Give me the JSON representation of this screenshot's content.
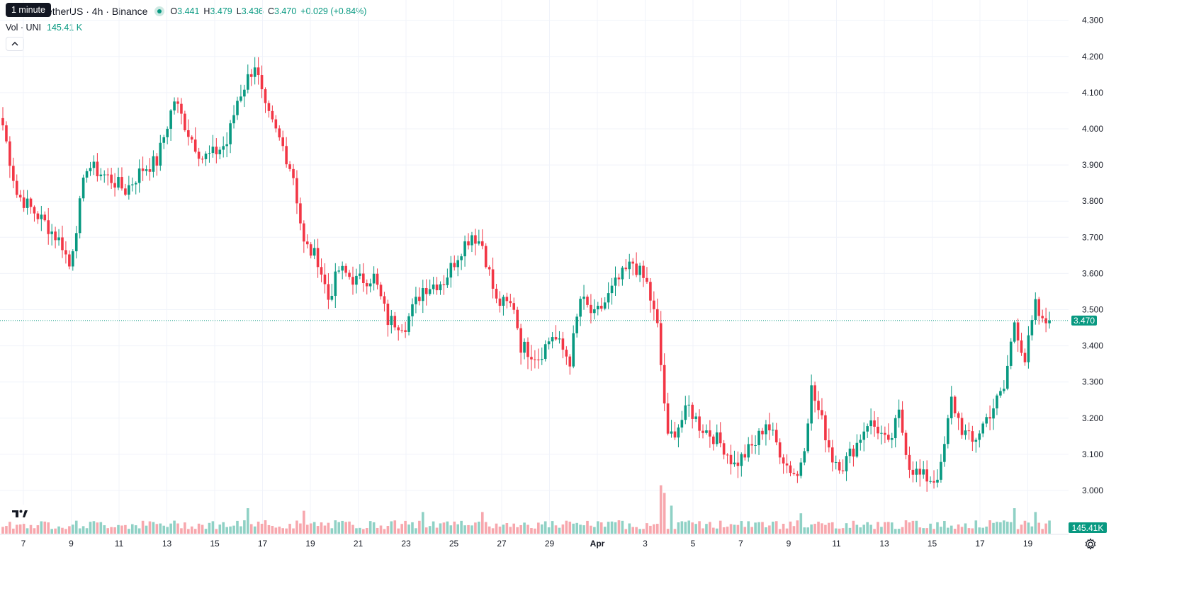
{
  "header": {
    "tooltip": "1 minute",
    "symbol": "etherUS · 4h · Binance",
    "open_label": "O",
    "open": "3.441",
    "high_label": "H",
    "high": "3.479",
    "low_label": "L",
    "low": "3.436",
    "close_label": "C",
    "close": "3.470",
    "change": "+0.029 (+0.84%)",
    "volume_label": "Vol · UNI",
    "volume_value": "145.41 K"
  },
  "colors": {
    "up": "#089981",
    "down": "#f23645",
    "up_vol": "#8fd1c5",
    "down_vol": "#f7a7ad",
    "grid": "#f0f3fa",
    "text": "#131722"
  },
  "icons": {
    "collapse": "chevron-up-icon",
    "logo": "tradingview-logo-icon",
    "settings": "gear-icon"
  },
  "chart_data": {
    "type": "candlestick",
    "interval": "4h",
    "y_ticks": [
      "3.000",
      "3.100",
      "3.200",
      "3.300",
      "3.400",
      "3.500",
      "3.600",
      "3.700",
      "3.800",
      "3.900",
      "4.000",
      "4.100",
      "4.200",
      "4.300"
    ],
    "ylim": [
      2.94,
      4.32
    ],
    "x_ticks": [
      "7",
      "9",
      "11",
      "13",
      "15",
      "17",
      "19",
      "21",
      "23",
      "25",
      "27",
      "29",
      "Apr",
      "3",
      "5",
      "7",
      "9",
      "11",
      "13",
      "15",
      "17",
      "19"
    ],
    "last_price": "3.470",
    "last_volume": "145.41K",
    "grid": true,
    "anchors": [
      {
        "i": 0,
        "p": 4.01
      },
      {
        "i": 4,
        "p": 3.82
      },
      {
        "i": 12,
        "p": 3.74
      },
      {
        "i": 17,
        "p": 3.68
      },
      {
        "i": 19,
        "p": 3.62
      },
      {
        "i": 24,
        "p": 3.9
      },
      {
        "i": 31,
        "p": 3.86
      },
      {
        "i": 35,
        "p": 3.83
      },
      {
        "i": 40,
        "p": 3.89
      },
      {
        "i": 44,
        "p": 3.91
      },
      {
        "i": 49,
        "p": 4.08
      },
      {
        "i": 53,
        "p": 3.99
      },
      {
        "i": 57,
        "p": 3.92
      },
      {
        "i": 60,
        "p": 3.93
      },
      {
        "i": 64,
        "p": 3.96
      },
      {
        "i": 67,
        "p": 4.08
      },
      {
        "i": 70,
        "p": 4.14
      },
      {
        "i": 72,
        "p": 4.18
      },
      {
        "i": 75,
        "p": 4.05
      },
      {
        "i": 80,
        "p": 3.95
      },
      {
        "i": 83,
        "p": 3.87
      },
      {
        "i": 86,
        "p": 3.68
      },
      {
        "i": 90,
        "p": 3.64
      },
      {
        "i": 93,
        "p": 3.53
      },
      {
        "i": 96,
        "p": 3.61
      },
      {
        "i": 101,
        "p": 3.58
      },
      {
        "i": 106,
        "p": 3.59
      },
      {
        "i": 110,
        "p": 3.47
      },
      {
        "i": 115,
        "p": 3.46
      },
      {
        "i": 120,
        "p": 3.56
      },
      {
        "i": 126,
        "p": 3.58
      },
      {
        "i": 131,
        "p": 3.67
      },
      {
        "i": 134,
        "p": 3.71
      },
      {
        "i": 137,
        "p": 3.68
      },
      {
        "i": 141,
        "p": 3.52
      },
      {
        "i": 146,
        "p": 3.51
      },
      {
        "i": 148,
        "p": 3.4
      },
      {
        "i": 153,
        "p": 3.37
      },
      {
        "i": 157,
        "p": 3.43
      },
      {
        "i": 162,
        "p": 3.36
      },
      {
        "i": 165,
        "p": 3.53
      },
      {
        "i": 169,
        "p": 3.48
      },
      {
        "i": 172,
        "p": 3.52
      },
      {
        "i": 175,
        "p": 3.57
      },
      {
        "i": 180,
        "p": 3.63
      },
      {
        "i": 184,
        "p": 3.57
      },
      {
        "i": 187,
        "p": 3.45
      },
      {
        "i": 190,
        "p": 3.14
      },
      {
        "i": 193,
        "p": 3.18
      },
      {
        "i": 196,
        "p": 3.23
      },
      {
        "i": 199,
        "p": 3.18
      },
      {
        "i": 203,
        "p": 3.15
      },
      {
        "i": 206,
        "p": 3.12
      },
      {
        "i": 209,
        "p": 3.07
      },
      {
        "i": 212,
        "p": 3.1
      },
      {
        "i": 215,
        "p": 3.13
      },
      {
        "i": 218,
        "p": 3.19
      },
      {
        "i": 221,
        "p": 3.13
      },
      {
        "i": 224,
        "p": 3.07
      },
      {
        "i": 227,
        "p": 3.04
      },
      {
        "i": 229,
        "p": 3.13
      },
      {
        "i": 231,
        "p": 3.28
      },
      {
        "i": 234,
        "p": 3.19
      },
      {
        "i": 237,
        "p": 3.09
      },
      {
        "i": 240,
        "p": 3.07
      },
      {
        "i": 244,
        "p": 3.13
      },
      {
        "i": 247,
        "p": 3.19
      },
      {
        "i": 250,
        "p": 3.17
      },
      {
        "i": 253,
        "p": 3.12
      },
      {
        "i": 256,
        "p": 3.21
      },
      {
        "i": 259,
        "p": 3.07
      },
      {
        "i": 262,
        "p": 3.04
      },
      {
        "i": 266,
        "p": 3.03
      },
      {
        "i": 268,
        "p": 3.06
      },
      {
        "i": 271,
        "p": 3.25
      },
      {
        "i": 274,
        "p": 3.17
      },
      {
        "i": 277,
        "p": 3.13
      },
      {
        "i": 281,
        "p": 3.2
      },
      {
        "i": 286,
        "p": 3.28
      },
      {
        "i": 289,
        "p": 3.47
      },
      {
        "i": 292,
        "p": 3.36
      },
      {
        "i": 295,
        "p": 3.51
      },
      {
        "i": 297,
        "p": 3.46
      },
      {
        "i": 299,
        "p": 3.47
      }
    ],
    "volume_spikes": [
      {
        "i": 70,
        "v": 1.0
      },
      {
        "i": 86,
        "v": 0.9
      },
      {
        "i": 120,
        "v": 0.85
      },
      {
        "i": 137,
        "v": 0.85
      },
      {
        "i": 188,
        "v": 1.9
      },
      {
        "i": 189,
        "v": 1.6
      },
      {
        "i": 191,
        "v": 1.1
      },
      {
        "i": 228,
        "v": 0.8
      },
      {
        "i": 289,
        "v": 1.0
      },
      {
        "i": 295,
        "v": 0.85
      }
    ]
  }
}
